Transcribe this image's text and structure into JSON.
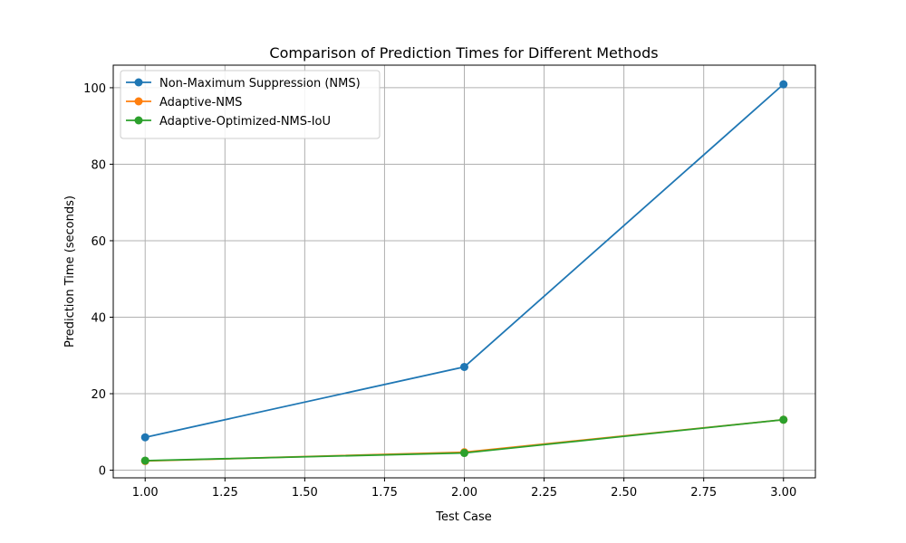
{
  "chart_data": {
    "type": "line",
    "title": "Comparison of Prediction Times for Different Methods",
    "xlabel": "Test Case",
    "ylabel": "Prediction Time (seconds)",
    "xlim": [
      0.9,
      3.1
    ],
    "ylim": [
      -2.0,
      105.9
    ],
    "xticks": [
      1.0,
      1.25,
      1.5,
      1.75,
      2.0,
      2.25,
      2.5,
      2.75,
      3.0
    ],
    "xtick_labels": [
      "1.00",
      "1.25",
      "1.50",
      "1.75",
      "2.00",
      "2.25",
      "2.50",
      "2.75",
      "3.00"
    ],
    "yticks": [
      0,
      20,
      40,
      60,
      80,
      100
    ],
    "ytick_labels": [
      "0",
      "20",
      "40",
      "60",
      "80",
      "100"
    ],
    "grid": true,
    "legend_position": "top-left",
    "x": [
      1,
      2,
      3
    ],
    "series": [
      {
        "name": "Non-Maximum Suppression (NMS)",
        "color": "#1f77b4",
        "values": [
          8.6,
          27.0,
          100.9
        ],
        "marker": "circle"
      },
      {
        "name": "Adaptive-NMS",
        "color": "#ff7f0e",
        "values": [
          2.4,
          4.7,
          13.2
        ],
        "marker": "circle"
      },
      {
        "name": "Adaptive-Optimized-NMS-IoU",
        "color": "#2ca02c",
        "values": [
          2.5,
          4.5,
          13.2
        ],
        "marker": "circle"
      }
    ]
  }
}
